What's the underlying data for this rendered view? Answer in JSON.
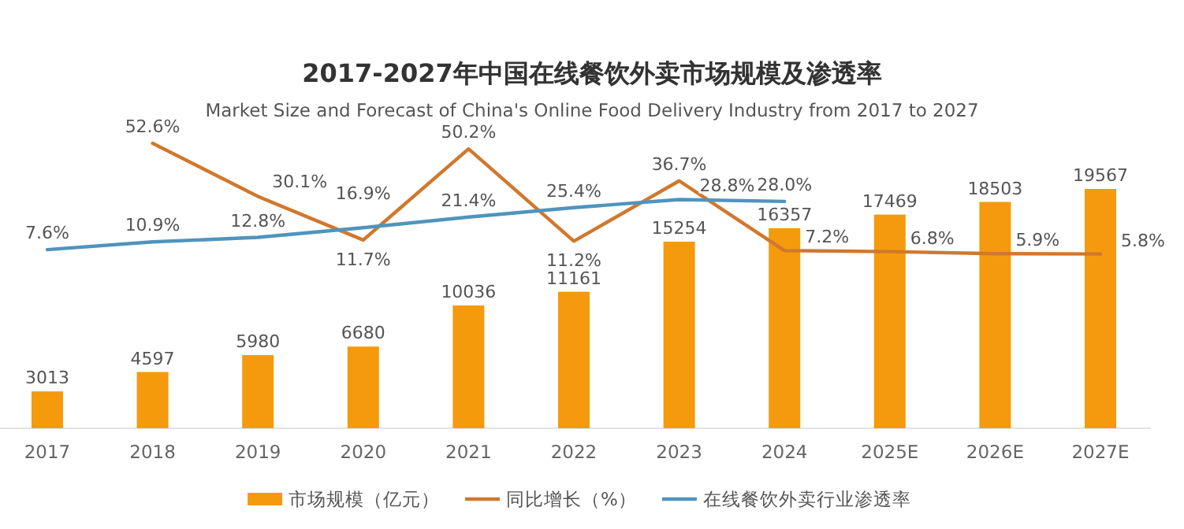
{
  "chart_data": {
    "type": "bar",
    "title": "2017-2027年中国在线餐饮外卖市场规模及渗透率",
    "subtitle": "Market Size and Forecast of China's Online Food Delivery Industry from 2017 to 2027",
    "categories": [
      "2017",
      "2018",
      "2019",
      "2020",
      "2021",
      "2022",
      "2023",
      "2024",
      "2025E",
      "2026E",
      "2027E"
    ],
    "series": [
      {
        "name": "市场规模（亿元）",
        "color": "#f59a0c",
        "values": [
          3013,
          4597,
          5980,
          6680,
          10036,
          11161,
          15254,
          16357,
          17469,
          18503,
          19567
        ],
        "value_labels": [
          "3013",
          "4597",
          "5980",
          "6680",
          "10036",
          "11161",
          "15254",
          "16357",
          "17469",
          "18503",
          "19567"
        ]
      },
      {
        "name": "同比增长（%）",
        "type": "line",
        "axis": "y2",
        "color": "#d0782e",
        "values": [
          null,
          52.6,
          30.1,
          11.7,
          50.2,
          11.2,
          36.7,
          7.2,
          6.8,
          5.9,
          5.8
        ],
        "value_labels": [
          null,
          "52.6%",
          "30.1%",
          "11.7%",
          "50.2%",
          "11.2%",
          "36.7%",
          "7.2%",
          "6.8%",
          "5.9%",
          "5.8%"
        ]
      },
      {
        "name": "在线餐饮外卖行业渗透率",
        "type": "line",
        "axis": "y2",
        "color": "#4f94bd",
        "values": [
          7.6,
          10.9,
          12.8,
          16.9,
          21.4,
          25.4,
          28.8,
          28.0,
          null,
          null,
          null
        ],
        "value_labels": [
          "7.6%",
          "10.9%",
          "12.8%",
          "16.9%",
          "21.4%",
          "25.4%",
          "28.8%",
          "28.0%",
          null,
          null,
          null
        ]
      }
    ],
    "legend": "bottom"
  }
}
